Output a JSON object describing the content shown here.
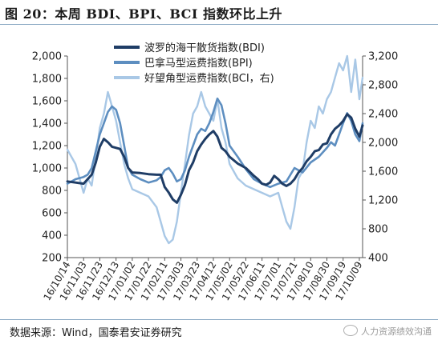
{
  "figure": {
    "title": "图 20：本周 BDI、BPI、BCI 指数环比上升",
    "source": "数据来源：Wind，国泰君安证券研究",
    "watermark": "人力资源绩效沟通"
  },
  "chart_data": {
    "type": "line",
    "title": "",
    "xlabel": "",
    "ylabel": "",
    "ylim_left": [
      200,
      2000
    ],
    "ylim_right": [
      400,
      3200
    ],
    "y_ticks_left": [
      "2,000",
      "1,800",
      "1,600",
      "1,400",
      "1,200",
      "1,000",
      "800",
      "600",
      "400",
      "200"
    ],
    "y_ticks_right": [
      "3,200",
      "2,800",
      "2,400",
      "2,000",
      "1,600",
      "1,200",
      "800",
      "400"
    ],
    "x_tick_labels": [
      "16/10/14",
      "16/11/03",
      "16/11/23",
      "16/12/13",
      "17/01/02",
      "17/01/22",
      "17/02/11",
      "17/03/03",
      "17/03/23",
      "17/04/12",
      "17/05/02",
      "17/05/22",
      "17/06/11",
      "17/07/01",
      "17/07/21",
      "17/08/10",
      "17/08/30",
      "17/09/19",
      "17/10/09"
    ],
    "grid": false,
    "legend_position": "top-center",
    "colors": {
      "BDI": "#1f3d66",
      "BPI": "#5d8ec0",
      "BCI": "#a9c8e6"
    },
    "series": [
      {
        "name": "波罗的海干散货指数(BDI)",
        "axis": "left",
        "x": [
          "16/10/14",
          "16/10/24",
          "16/11/03",
          "16/11/13",
          "16/11/18",
          "16/11/23",
          "16/11/28",
          "16/12/03",
          "16/12/08",
          "16/12/13",
          "16/12/18",
          "16/12/23",
          "16/12/28",
          "17/01/02",
          "17/01/12",
          "17/01/22",
          "17/02/01",
          "17/02/06",
          "17/02/11",
          "17/02/16",
          "17/02/21",
          "17/02/26",
          "17/03/03",
          "17/03/08",
          "17/03/13",
          "17/03/18",
          "17/03/23",
          "17/03/28",
          "17/04/02",
          "17/04/07",
          "17/04/12",
          "17/04/17",
          "17/04/22",
          "17/04/27",
          "17/05/02",
          "17/05/12",
          "17/05/22",
          "17/06/01",
          "17/06/06",
          "17/06/11",
          "17/06/16",
          "17/06/21",
          "17/06/26",
          "17/07/01",
          "17/07/06",
          "17/07/11",
          "17/07/16",
          "17/07/21",
          "17/07/26",
          "17/07/31",
          "17/08/05",
          "17/08/10",
          "17/08/15",
          "17/08/20",
          "17/08/25",
          "17/08/30",
          "17/09/04",
          "17/09/09",
          "17/09/14",
          "17/09/19",
          "17/09/24",
          "17/09/29",
          "17/10/04",
          "17/10/09",
          "17/10/13"
        ],
        "y": [
          880,
          870,
          860,
          940,
          1050,
          1190,
          1260,
          1230,
          1190,
          1180,
          1170,
          1100,
          1000,
          960,
          955,
          945,
          940,
          940,
          830,
          780,
          720,
          690,
          760,
          850,
          980,
          1050,
          1150,
          1210,
          1260,
          1300,
          1330,
          1280,
          1180,
          1150,
          1100,
          1040,
          1000,
          930,
          900,
          860,
          850,
          870,
          930,
          900,
          860,
          840,
          860,
          900,
          960,
          1000,
          1060,
          1100,
          1150,
          1160,
          1210,
          1220,
          1300,
          1350,
          1380,
          1420,
          1480,
          1450,
          1350,
          1280,
          1380
        ]
      },
      {
        "name": "巴拿马型运费指数(BPI)",
        "axis": "left",
        "x": [
          "16/10/14",
          "16/10/24",
          "16/11/03",
          "16/11/08",
          "16/11/13",
          "16/11/18",
          "16/11/23",
          "16/11/28",
          "16/12/03",
          "16/12/08",
          "16/12/13",
          "16/12/18",
          "16/12/23",
          "16/12/28",
          "17/01/02",
          "17/01/12",
          "17/01/22",
          "17/02/01",
          "17/02/06",
          "17/02/11",
          "17/02/16",
          "17/02/21",
          "17/02/26",
          "17/03/03",
          "17/03/08",
          "17/03/13",
          "17/03/18",
          "17/03/23",
          "17/03/28",
          "17/04/02",
          "17/04/07",
          "17/04/12",
          "17/04/17",
          "17/04/22",
          "17/04/27",
          "17/05/02",
          "17/05/12",
          "17/05/22",
          "17/06/01",
          "17/06/11",
          "17/06/21",
          "17/07/01",
          "17/07/11",
          "17/07/21",
          "17/07/31",
          "17/08/10",
          "17/08/20",
          "17/08/30",
          "17/09/04",
          "17/09/09",
          "17/09/14",
          "17/09/19",
          "17/09/24",
          "17/09/29",
          "17/10/04",
          "17/10/09",
          "17/10/13"
        ],
        "y": [
          860,
          900,
          920,
          940,
          1000,
          1150,
          1300,
          1400,
          1500,
          1550,
          1520,
          1400,
          1200,
          1000,
          940,
          900,
          870,
          890,
          920,
          980,
          1000,
          950,
          880,
          900,
          980,
          1100,
          1200,
          1300,
          1350,
          1330,
          1400,
          1500,
          1620,
          1560,
          1400,
          1200,
          1100,
          990,
          900,
          860,
          830,
          860,
          880,
          1000,
          960,
          1050,
          1100,
          1180,
          1230,
          1200,
          1300,
          1400,
          1490,
          1420,
          1300,
          1240,
          1400
        ]
      },
      {
        "name": "好望角型运费指数(BCI，右)",
        "axis": "right",
        "x": [
          "16/10/14",
          "16/10/24",
          "16/11/03",
          "16/11/08",
          "16/11/13",
          "16/11/18",
          "16/11/23",
          "16/11/28",
          "16/12/03",
          "16/12/08",
          "16/12/13",
          "16/12/18",
          "16/12/23",
          "16/12/28",
          "17/01/02",
          "17/01/12",
          "17/01/22",
          "17/02/01",
          "17/02/06",
          "17/02/11",
          "17/02/16",
          "17/02/21",
          "17/02/26",
          "17/03/03",
          "17/03/08",
          "17/03/13",
          "17/03/18",
          "17/03/23",
          "17/03/28",
          "17/04/02",
          "17/04/07",
          "17/04/12",
          "17/04/17",
          "17/04/22",
          "17/04/27",
          "17/05/02",
          "17/05/12",
          "17/05/22",
          "17/06/01",
          "17/06/11",
          "17/06/21",
          "17/07/01",
          "17/07/06",
          "17/07/11",
          "17/07/16",
          "17/07/21",
          "17/07/26",
          "17/07/31",
          "17/08/05",
          "17/08/10",
          "17/08/15",
          "17/08/20",
          "17/08/25",
          "17/08/30",
          "17/09/04",
          "17/09/09",
          "17/09/14",
          "17/09/19",
          "17/09/24",
          "17/09/29",
          "17/10/04",
          "17/10/09",
          "17/10/13"
        ],
        "y": [
          1900,
          1700,
          1300,
          1500,
          1400,
          1800,
          2200,
          2400,
          2700,
          2500,
          2300,
          2000,
          1700,
          1500,
          1350,
          1300,
          1250,
          1100,
          900,
          700,
          600,
          650,
          900,
          1300,
          1700,
          2100,
          2400,
          2500,
          2700,
          2500,
          2400,
          2300,
          2600,
          2200,
          2000,
          1700,
          1500,
          1400,
          1350,
          1300,
          1250,
          1300,
          1100,
          900,
          800,
          1100,
          1500,
          1600,
          2000,
          2300,
          2200,
          2500,
          2400,
          2600,
          2700,
          2900,
          3100,
          3000,
          3200,
          2700,
          3150,
          2600,
          2900
        ]
      }
    ]
  }
}
